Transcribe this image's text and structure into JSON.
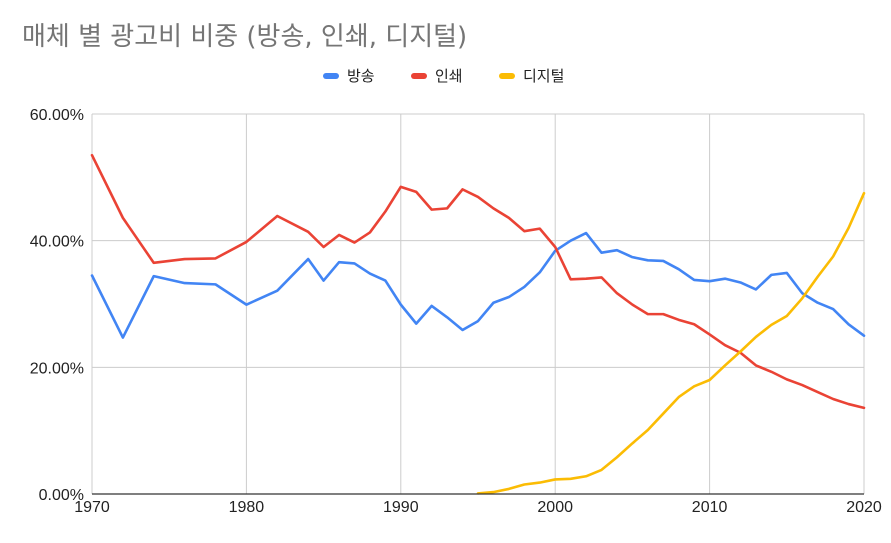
{
  "chart_data": {
    "type": "line",
    "title": "매체 별 광고비 비중 (방송, 인쇄, 디지털)",
    "xlabel": "",
    "ylabel": "",
    "xlim": [
      1970,
      2020
    ],
    "ylim": [
      0,
      0.6
    ],
    "x_ticks": [
      "1970",
      "1980",
      "1990",
      "2000",
      "2010",
      "2020"
    ],
    "y_ticks": [
      "0.00%",
      "20.00%",
      "40.00%",
      "60.00%"
    ],
    "grid": true,
    "legend_position": "top-center",
    "series": [
      {
        "name": "방송",
        "color": "#4285f4",
        "x": [
          1970,
          1972,
          1974,
          1976,
          1978,
          1980,
          1982,
          1984,
          1985,
          1986,
          1987,
          1988,
          1989,
          1990,
          1991,
          1992,
          1993,
          1994,
          1995,
          1996,
          1997,
          1998,
          1999,
          2000,
          2001,
          2002,
          2003,
          2004,
          2005,
          2006,
          2007,
          2008,
          2009,
          2010,
          2011,
          2012,
          2013,
          2014,
          2015,
          2016,
          2017,
          2018,
          2019,
          2020
        ],
        "values": [
          0.345,
          0.247,
          0.344,
          0.333,
          0.331,
          0.299,
          0.321,
          0.371,
          0.337,
          0.366,
          0.364,
          0.348,
          0.337,
          0.299,
          0.269,
          0.297,
          0.279,
          0.259,
          0.273,
          0.302,
          0.311,
          0.327,
          0.35,
          0.384,
          0.4,
          0.412,
          0.381,
          0.385,
          0.374,
          0.369,
          0.368,
          0.355,
          0.338,
          0.336,
          0.34,
          0.334,
          0.323,
          0.346,
          0.349,
          0.317,
          0.302,
          0.292,
          0.268,
          0.25
        ]
      },
      {
        "name": "인쇄",
        "color": "#ea4335",
        "x": [
          1970,
          1972,
          1974,
          1976,
          1978,
          1980,
          1982,
          1984,
          1985,
          1986,
          1987,
          1988,
          1989,
          1990,
          1991,
          1992,
          1993,
          1994,
          1995,
          1996,
          1997,
          1998,
          1999,
          2000,
          2001,
          2002,
          2003,
          2004,
          2005,
          2006,
          2007,
          2008,
          2009,
          2010,
          2011,
          2012,
          2013,
          2014,
          2015,
          2016,
          2017,
          2018,
          2019,
          2020
        ],
        "values": [
          0.535,
          0.436,
          0.365,
          0.371,
          0.372,
          0.398,
          0.439,
          0.414,
          0.39,
          0.409,
          0.397,
          0.413,
          0.446,
          0.485,
          0.477,
          0.449,
          0.451,
          0.481,
          0.469,
          0.451,
          0.436,
          0.415,
          0.419,
          0.39,
          0.339,
          0.34,
          0.342,
          0.317,
          0.299,
          0.284,
          0.284,
          0.275,
          0.268,
          0.252,
          0.235,
          0.223,
          0.203,
          0.193,
          0.181,
          0.172,
          0.161,
          0.15,
          0.142,
          0.136
        ]
      },
      {
        "name": "디지털",
        "color": "#fbbc04",
        "x": [
          1995,
          1996,
          1997,
          1998,
          1999,
          2000,
          2001,
          2002,
          2003,
          2004,
          2005,
          2006,
          2007,
          2008,
          2009,
          2010,
          2011,
          2012,
          2013,
          2014,
          2015,
          2016,
          2017,
          2018,
          2019,
          2020
        ],
        "values": [
          0.001,
          0.003,
          0.008,
          0.015,
          0.018,
          0.023,
          0.024,
          0.028,
          0.038,
          0.058,
          0.08,
          0.101,
          0.127,
          0.153,
          0.17,
          0.18,
          0.203,
          0.225,
          0.248,
          0.267,
          0.281,
          0.309,
          0.343,
          0.375,
          0.42,
          0.475
        ]
      }
    ]
  }
}
